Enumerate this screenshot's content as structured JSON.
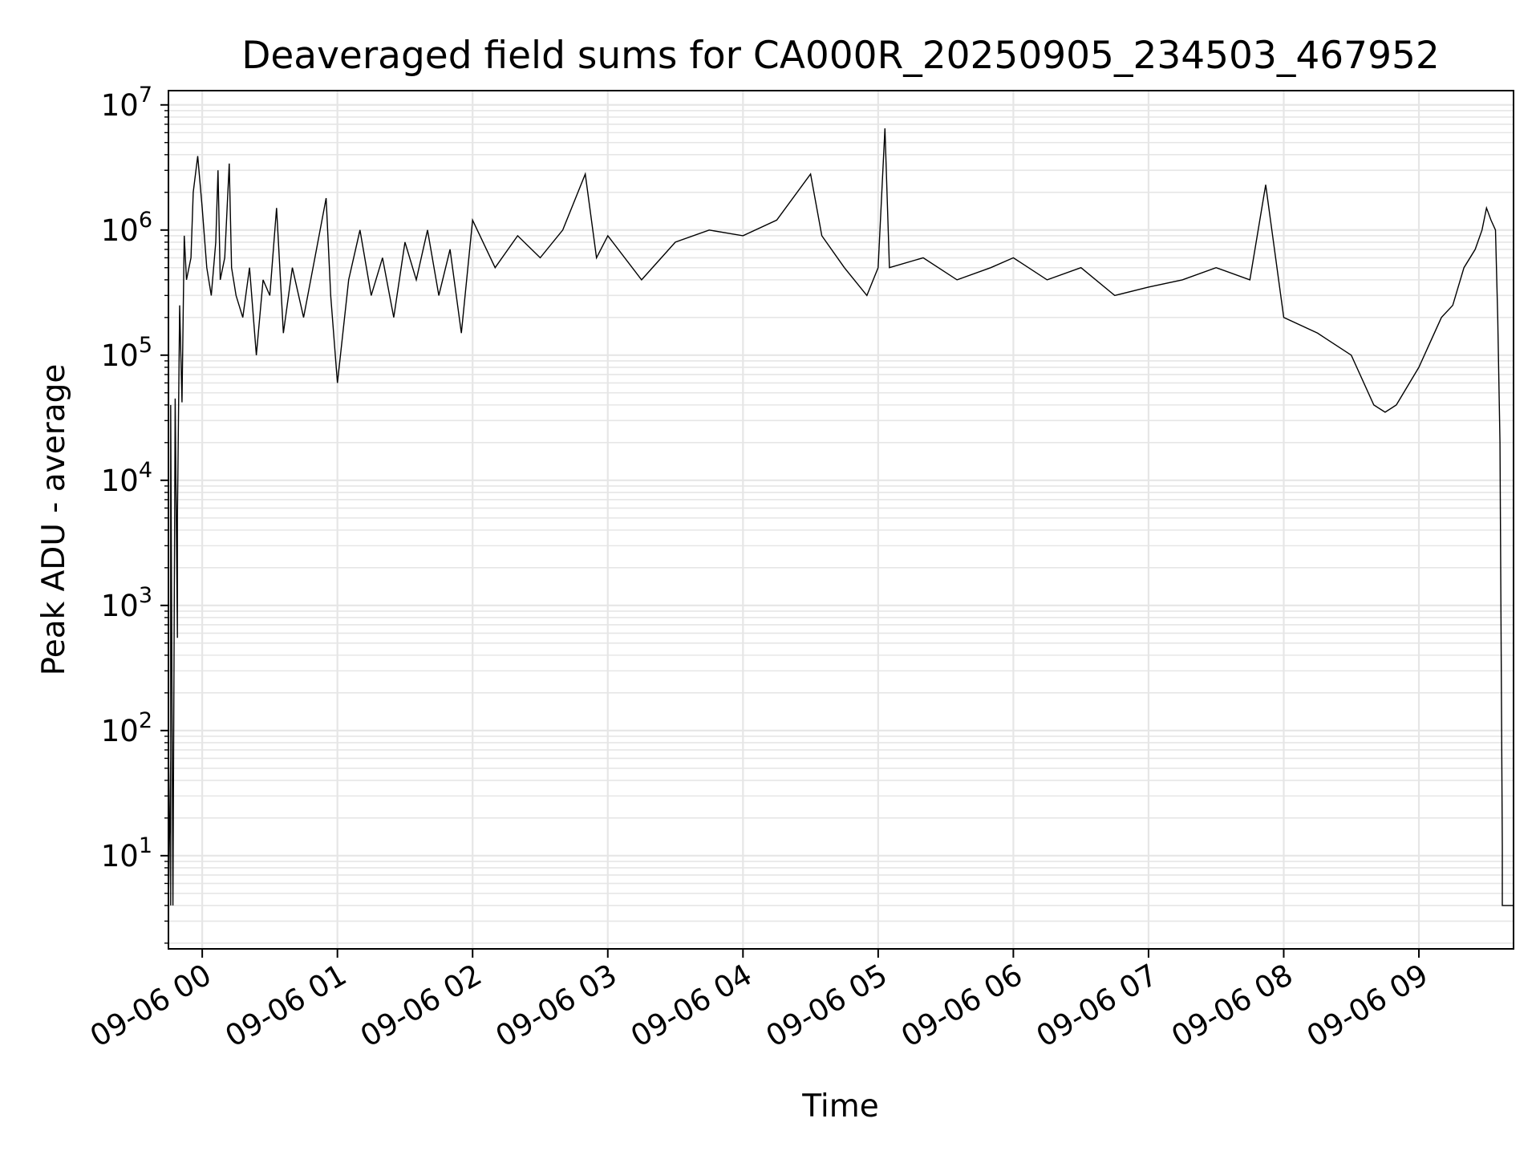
{
  "chart_data": {
    "type": "line",
    "title": "Deaveraged field sums for CA000R_20250905_234503_467952",
    "xlabel": "Time",
    "ylabel": "Peak ADU - average",
    "yscale": "log",
    "ylim": [
      1.8,
      13000000
    ],
    "xlim": [
      "2025-09-05 23:45",
      "2025-09-06 09:42"
    ],
    "grid": true,
    "line_color": "#000000",
    "x_ticks": [
      {
        "time": "2025-09-06 00:00",
        "label": "09-06 00"
      },
      {
        "time": "2025-09-06 01:00",
        "label": "09-06 01"
      },
      {
        "time": "2025-09-06 02:00",
        "label": "09-06 02"
      },
      {
        "time": "2025-09-06 03:00",
        "label": "09-06 03"
      },
      {
        "time": "2025-09-06 04:00",
        "label": "09-06 04"
      },
      {
        "time": "2025-09-06 05:00",
        "label": "09-06 05"
      },
      {
        "time": "2025-09-06 06:00",
        "label": "09-06 06"
      },
      {
        "time": "2025-09-06 07:00",
        "label": "09-06 07"
      },
      {
        "time": "2025-09-06 08:00",
        "label": "09-06 08"
      },
      {
        "time": "2025-09-06 09:00",
        "label": "09-06 09"
      }
    ],
    "y_ticks": [
      {
        "value": 10,
        "base": "10",
        "exp": "1"
      },
      {
        "value": 100,
        "base": "10",
        "exp": "2"
      },
      {
        "value": 1000,
        "base": "10",
        "exp": "3"
      },
      {
        "value": 10000,
        "base": "10",
        "exp": "4"
      },
      {
        "value": 100000,
        "base": "10",
        "exp": "5"
      },
      {
        "value": 1000000,
        "base": "10",
        "exp": "6"
      },
      {
        "value": 10000000,
        "base": "10",
        "exp": "7"
      }
    ],
    "series": [
      {
        "points": [
          [
            "2025-09-05 23:45",
            4
          ],
          [
            "2025-09-05 23:45",
            110000
          ],
          [
            "2025-09-05 23:45",
            4
          ],
          [
            "2025-09-05 23:46",
            60
          ],
          [
            "2025-09-05 23:46",
            4
          ],
          [
            "2025-09-05 23:46",
            40000
          ],
          [
            "2025-09-05 23:47",
            4
          ],
          [
            "2025-09-05 23:48",
            45000
          ],
          [
            "2025-09-05 23:49",
            550
          ],
          [
            "2025-09-05 23:49",
            5000
          ],
          [
            "2025-09-05 23:50",
            250000
          ],
          [
            "2025-09-05 23:51",
            42000
          ],
          [
            "2025-09-05 23:52",
            900000
          ],
          [
            "2025-09-05 23:53",
            400000
          ],
          [
            "2025-09-05 23:55",
            600000
          ],
          [
            "2025-09-05 23:56",
            2000000
          ],
          [
            "2025-09-05 23:58",
            3900000
          ],
          [
            "2025-09-06 00:00",
            1500000
          ],
          [
            "2025-09-06 00:02",
            500000
          ],
          [
            "2025-09-06 00:04",
            300000
          ],
          [
            "2025-09-06 00:06",
            800000
          ],
          [
            "2025-09-06 00:07",
            3000000
          ],
          [
            "2025-09-06 00:08",
            400000
          ],
          [
            "2025-09-06 00:10",
            600000
          ],
          [
            "2025-09-06 00:12",
            3400000
          ],
          [
            "2025-09-06 00:13",
            500000
          ],
          [
            "2025-09-06 00:15",
            300000
          ],
          [
            "2025-09-06 00:18",
            200000
          ],
          [
            "2025-09-06 00:21",
            500000
          ],
          [
            "2025-09-06 00:24",
            100000
          ],
          [
            "2025-09-06 00:27",
            400000
          ],
          [
            "2025-09-06 00:30",
            300000
          ],
          [
            "2025-09-06 00:33",
            1500000
          ],
          [
            "2025-09-06 00:36",
            150000
          ],
          [
            "2025-09-06 00:40",
            500000
          ],
          [
            "2025-09-06 00:45",
            200000
          ],
          [
            "2025-09-06 00:50",
            600000
          ],
          [
            "2025-09-06 00:55",
            1800000
          ],
          [
            "2025-09-06 00:57",
            300000
          ],
          [
            "2025-09-06 01:00",
            60000
          ],
          [
            "2025-09-06 01:05",
            400000
          ],
          [
            "2025-09-06 01:10",
            1000000
          ],
          [
            "2025-09-06 01:15",
            300000
          ],
          [
            "2025-09-06 01:20",
            600000
          ],
          [
            "2025-09-06 01:25",
            200000
          ],
          [
            "2025-09-06 01:30",
            800000
          ],
          [
            "2025-09-06 01:35",
            400000
          ],
          [
            "2025-09-06 01:40",
            1000000
          ],
          [
            "2025-09-06 01:45",
            300000
          ],
          [
            "2025-09-06 01:50",
            700000
          ],
          [
            "2025-09-06 01:55",
            150000
          ],
          [
            "2025-09-06 02:00",
            1200000
          ],
          [
            "2025-09-06 02:10",
            500000
          ],
          [
            "2025-09-06 02:20",
            900000
          ],
          [
            "2025-09-06 02:30",
            600000
          ],
          [
            "2025-09-06 02:40",
            1000000
          ],
          [
            "2025-09-06 02:50",
            2800000
          ],
          [
            "2025-09-06 02:55",
            600000
          ],
          [
            "2025-09-06 03:00",
            900000
          ],
          [
            "2025-09-06 03:15",
            400000
          ],
          [
            "2025-09-06 03:30",
            800000
          ],
          [
            "2025-09-06 03:45",
            1000000
          ],
          [
            "2025-09-06 04:00",
            900000
          ],
          [
            "2025-09-06 04:15",
            1200000
          ],
          [
            "2025-09-06 04:30",
            2800000
          ],
          [
            "2025-09-06 04:35",
            900000
          ],
          [
            "2025-09-06 04:45",
            500000
          ],
          [
            "2025-09-06 04:55",
            300000
          ],
          [
            "2025-09-06 05:00",
            500000
          ],
          [
            "2025-09-06 05:03",
            6500000
          ],
          [
            "2025-09-06 05:05",
            500000
          ],
          [
            "2025-09-06 05:20",
            600000
          ],
          [
            "2025-09-06 05:35",
            400000
          ],
          [
            "2025-09-06 05:50",
            500000
          ],
          [
            "2025-09-06 06:00",
            600000
          ],
          [
            "2025-09-06 06:15",
            400000
          ],
          [
            "2025-09-06 06:30",
            500000
          ],
          [
            "2025-09-06 06:45",
            300000
          ],
          [
            "2025-09-06 07:00",
            350000
          ],
          [
            "2025-09-06 07:15",
            400000
          ],
          [
            "2025-09-06 07:30",
            500000
          ],
          [
            "2025-09-06 07:45",
            400000
          ],
          [
            "2025-09-06 07:52",
            2300000
          ],
          [
            "2025-09-06 08:00",
            200000
          ],
          [
            "2025-09-06 08:15",
            150000
          ],
          [
            "2025-09-06 08:30",
            100000
          ],
          [
            "2025-09-06 08:40",
            40000
          ],
          [
            "2025-09-06 08:45",
            35000
          ],
          [
            "2025-09-06 08:50",
            40000
          ],
          [
            "2025-09-06 09:00",
            80000
          ],
          [
            "2025-09-06 09:10",
            200000
          ],
          [
            "2025-09-06 09:15",
            250000
          ],
          [
            "2025-09-06 09:20",
            500000
          ],
          [
            "2025-09-06 09:25",
            700000
          ],
          [
            "2025-09-06 09:28",
            1000000
          ],
          [
            "2025-09-06 09:30",
            1500000
          ],
          [
            "2025-09-06 09:32",
            1200000
          ],
          [
            "2025-09-06 09:34",
            1000000
          ],
          [
            "2025-09-06 09:35",
            200000
          ],
          [
            "2025-09-06 09:36",
            20000
          ],
          [
            "2025-09-06 09:37",
            12
          ],
          [
            "2025-09-06 09:37",
            4
          ],
          [
            "2025-09-06 09:42",
            4
          ]
        ]
      }
    ]
  }
}
